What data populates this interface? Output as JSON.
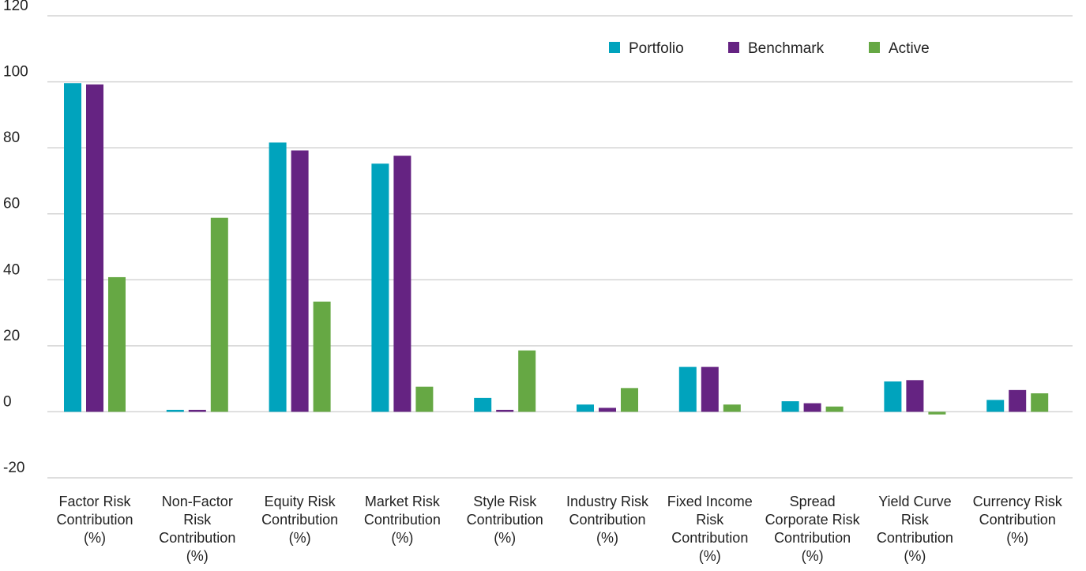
{
  "colors": {
    "portfolio": "#00a3bd",
    "benchmark": "#652382",
    "active": "#66a844",
    "grid": "#d4d4d4",
    "text": "#222222"
  },
  "chart_data": {
    "type": "bar",
    "title": "",
    "xlabel": "",
    "ylabel": "",
    "ylim": [
      -20,
      120
    ],
    "y_ticks": [
      -20,
      0,
      20,
      40,
      60,
      80,
      100,
      120
    ],
    "grid": true,
    "legend_position": "top-right",
    "categories": [
      [
        "Factor Risk",
        "Contribution",
        "(%)"
      ],
      [
        "Non-Factor",
        "Risk",
        "Contribution",
        "(%)"
      ],
      [
        "Equity Risk",
        "Contribution",
        "(%)"
      ],
      [
        "Market Risk",
        "Contribution",
        "(%)"
      ],
      [
        "Style Risk",
        "Contribution",
        "(%)"
      ],
      [
        "Industry Risk",
        "Contribution",
        "(%)"
      ],
      [
        "Fixed Income",
        "Risk",
        "Contribution",
        "(%)"
      ],
      [
        "Spread",
        "Corporate Risk",
        "Contribution",
        "(%)"
      ],
      [
        "Yield Curve",
        "Risk",
        "Contribution",
        "(%)"
      ],
      [
        "Currency Risk",
        "Contribution",
        "(%)"
      ]
    ],
    "series": [
      {
        "name": "Portfolio",
        "color": "#00a3bd",
        "values": [
          99.6,
          0.6,
          81.6,
          75.2,
          4.2,
          2.2,
          13.6,
          3.2,
          9.2,
          3.6
        ]
      },
      {
        "name": "Benchmark",
        "color": "#652382",
        "values": [
          99.2,
          0.6,
          79.2,
          77.6,
          0.6,
          1.2,
          13.6,
          2.6,
          9.6,
          6.6
        ]
      },
      {
        "name": "Active",
        "color": "#66a844",
        "values": [
          40.8,
          58.8,
          33.4,
          7.6,
          18.6,
          7.2,
          2.2,
          1.6,
          -0.8,
          5.6
        ]
      }
    ]
  }
}
